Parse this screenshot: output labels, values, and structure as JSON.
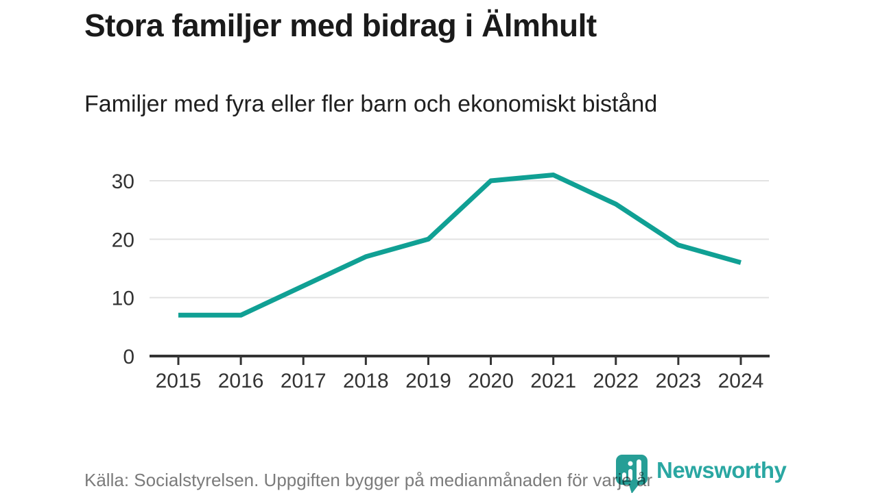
{
  "header": {
    "title": "Stora familjer med bidrag i Älmhult",
    "subtitle": "Familjer med fyra eller fler barn och ekonomiskt bistånd"
  },
  "footer": {
    "source": "Källa: Socialstyrelsen. Uppgiften bygger på medianmånaden för varje år",
    "brand": "Newsworthy"
  },
  "colors": {
    "line": "#10a094",
    "icon": "#269e96",
    "wordmark": "#2aa7a2",
    "axis": "#333333",
    "grid": "#e2e2e2",
    "tick_label": "#333333"
  },
  "chart_data": {
    "type": "line",
    "x": [
      2015,
      2016,
      2017,
      2018,
      2019,
      2020,
      2021,
      2022,
      2023,
      2024
    ],
    "values": [
      7,
      7,
      12,
      17,
      20,
      30,
      31,
      26,
      19,
      16
    ],
    "series_name": "Familjer med fyra eller fler barn och ekonomiskt bistånd",
    "title": "Stora familjer med bidrag i Älmhult",
    "xlabel": "",
    "ylabel": "",
    "ylim": [
      0,
      32
    ],
    "yticks": [
      0,
      10,
      20,
      30
    ],
    "grid": "horizontal",
    "legend": "none"
  }
}
